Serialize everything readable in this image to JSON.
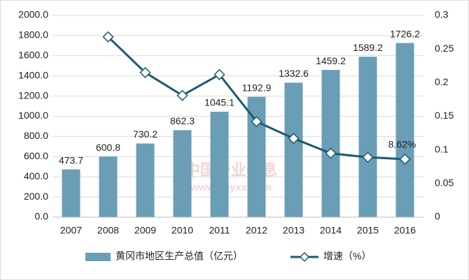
{
  "chart_data": {
    "type": "bar-line",
    "categories": [
      "2007",
      "2008",
      "2009",
      "2010",
      "2011",
      "2012",
      "2013",
      "2014",
      "2015",
      "2016"
    ],
    "series": [
      {
        "name": "黄冈市地区生产总值（亿元）",
        "color": "#6a9db6",
        "type": "bar",
        "values": [
          473.7,
          600.8,
          730.2,
          862.3,
          1045.1,
          1192.9,
          1332.6,
          1459.2,
          1589.2,
          1726.2
        ]
      },
      {
        "name": "增速（%）",
        "color": "#1b5a73",
        "type": "line",
        "axis": "y2",
        "values": [
          null,
          0.268,
          0.215,
          0.181,
          0.212,
          0.142,
          0.117,
          0.095,
          0.089,
          0.0862
        ],
        "value_labels": [
          null,
          null,
          null,
          null,
          null,
          null,
          null,
          null,
          null,
          "8.62%"
        ]
      }
    ],
    "ylim": [
      0,
      2000
    ],
    "yticks": [
      {
        "value": 0,
        "label": "0.0"
      },
      {
        "value": 200,
        "label": "200.0"
      },
      {
        "value": 400,
        "label": "400.0"
      },
      {
        "value": 600,
        "label": "600.0"
      },
      {
        "value": 800,
        "label": "800.0"
      },
      {
        "value": 1000,
        "label": "1000.0"
      },
      {
        "value": 1200,
        "label": "1200.0"
      },
      {
        "value": 1400,
        "label": "1400.0"
      },
      {
        "value": 1600,
        "label": "1600.0"
      },
      {
        "value": 1800,
        "label": "1800.0"
      },
      {
        "value": 2000,
        "label": "2000.0"
      }
    ],
    "y2lim": [
      0,
      0.3
    ],
    "y2ticks": [
      0,
      0.05,
      0.1,
      0.15,
      0.2,
      0.25,
      0.3
    ],
    "grid": true,
    "legend": "bottom",
    "watermark": [
      "中国产业信息",
      "www.chyxx.com"
    ]
  }
}
